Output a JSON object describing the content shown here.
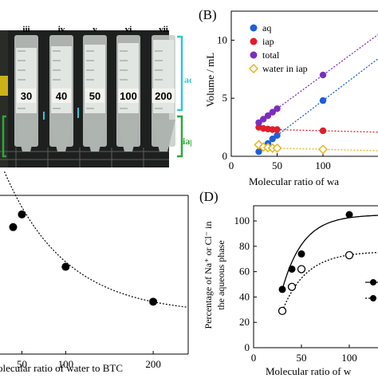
{
  "panel_a": {
    "tube_labels": [
      "iii",
      "iv",
      "v",
      "vi",
      "vii"
    ],
    "ratio_labels": [
      "30",
      "40",
      "50",
      "100",
      "200"
    ],
    "phase_labels": {
      "aq": "aq",
      "iap": "iap"
    },
    "colors": {
      "aq_bracket": "#33c6d6",
      "iap_bracket": "#2ea83a",
      "photo_bg": "#1d1f1f"
    }
  },
  "panel_b": {
    "letter": "(B)",
    "legend": [
      "aq",
      "iap",
      "total",
      "water in iap"
    ],
    "colors": {
      "aq": "#1f5fd6",
      "iap": "#e01e2a",
      "total": "#7b2fbe",
      "water_in_iap": "#e6b422"
    }
  },
  "panel_c": {},
  "panel_d": {
    "letter": "(D)"
  },
  "chart_data": [
    {
      "type": "scatter",
      "panel": "B",
      "ylabel": "Volume / mL",
      "xlabel": "Molecular ratio of wa",
      "x_ticks": [
        "0",
        "50",
        "100"
      ],
      "y_ticks": [
        "0",
        "5",
        "10"
      ],
      "xlim": [
        0,
        160
      ],
      "ylim": [
        0,
        12.5
      ],
      "series": [
        {
          "name": "aq",
          "x": [
            30,
            35,
            40,
            45,
            50,
            100
          ],
          "y": [
            0.4,
            0.8,
            1.1,
            1.5,
            1.8,
            4.8
          ]
        },
        {
          "name": "iap",
          "x": [
            30,
            35,
            40,
            45,
            50,
            100
          ],
          "y": [
            2.5,
            2.4,
            2.35,
            2.3,
            2.3,
            2.2
          ]
        },
        {
          "name": "total",
          "x": [
            30,
            35,
            40,
            45,
            50,
            100
          ],
          "y": [
            2.9,
            3.2,
            3.5,
            3.8,
            4.1,
            7.0
          ]
        },
        {
          "name": "water in iap",
          "x": [
            30,
            35,
            40,
            45,
            50,
            100
          ],
          "y": [
            1.0,
            0.8,
            0.75,
            0.7,
            0.7,
            0.6
          ]
        }
      ]
    },
    {
      "type": "scatter",
      "panel": "C",
      "xlabel": "olecular ratio of water to BTC",
      "x_ticks": [
        "50",
        "100",
        "200"
      ],
      "xlim": [
        25,
        240
      ],
      "series": [
        {
          "x": [
            40,
            50,
            100,
            200
          ],
          "y": [
            0.8,
            0.88,
            0.55,
            0.33
          ]
        }
      ]
    },
    {
      "type": "scatter",
      "panel": "D",
      "ylabel": "Percentage of Na⁺ or Cl⁻ in the aqueous phase",
      "xlabel": "Molecular ratio of w",
      "x_ticks": [
        "0",
        "50",
        "100"
      ],
      "y_ticks": [
        "0",
        "20",
        "40",
        "60",
        "80",
        "100"
      ],
      "xlim": [
        0,
        130
      ],
      "ylim": [
        0,
        112
      ],
      "series": [
        {
          "marker": "filled",
          "x": [
            30,
            40,
            50,
            100
          ],
          "y": [
            46,
            62,
            74,
            105
          ]
        },
        {
          "marker": "open",
          "x": [
            30,
            40,
            50,
            100
          ],
          "y": [
            29,
            48,
            62,
            73
          ]
        }
      ]
    }
  ]
}
